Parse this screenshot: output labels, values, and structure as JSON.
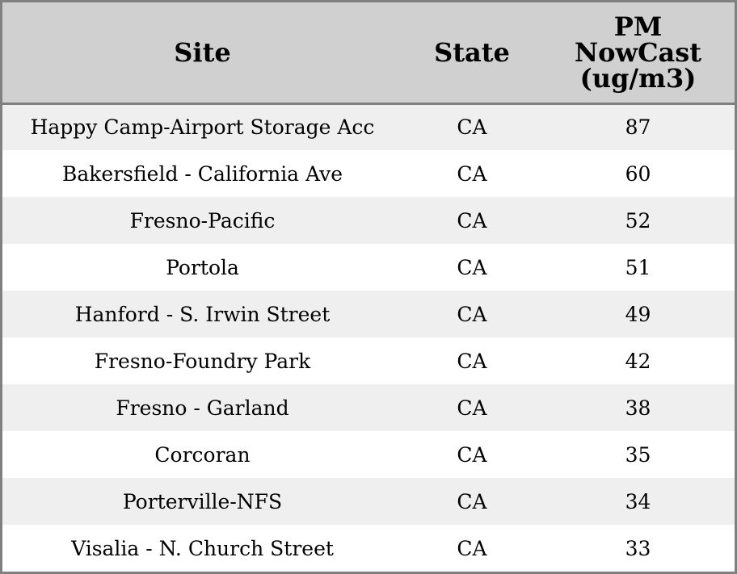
{
  "table": {
    "headers": {
      "site": "Site",
      "state": "State",
      "pm_line1": "PM",
      "pm_line2": "NowCast",
      "pm_line3": "(ug/m3)"
    },
    "rows": [
      {
        "site": "Happy Camp-Airport Storage Acc",
        "state": "CA",
        "pm": "87"
      },
      {
        "site": "Bakersfield - California Ave",
        "state": "CA",
        "pm": "60"
      },
      {
        "site": "Fresno-Pacific",
        "state": "CA",
        "pm": "52"
      },
      {
        "site": "Portola",
        "state": "CA",
        "pm": "51"
      },
      {
        "site": "Hanford - S. Irwin Street",
        "state": "CA",
        "pm": "49"
      },
      {
        "site": "Fresno-Foundry Park",
        "state": "CA",
        "pm": "42"
      },
      {
        "site": "Fresno - Garland",
        "state": "CA",
        "pm": "38"
      },
      {
        "site": "Corcoran",
        "state": "CA",
        "pm": "35"
      },
      {
        "site": "Porterville-NFS",
        "state": "CA",
        "pm": "34"
      },
      {
        "site": "Visalia - N. Church Street",
        "state": "CA",
        "pm": "33"
      }
    ]
  },
  "colors": {
    "header_bg": "#d0d0d0",
    "row_stripe": "#efefef",
    "row_plain": "#ffffff",
    "border": "#808080"
  }
}
